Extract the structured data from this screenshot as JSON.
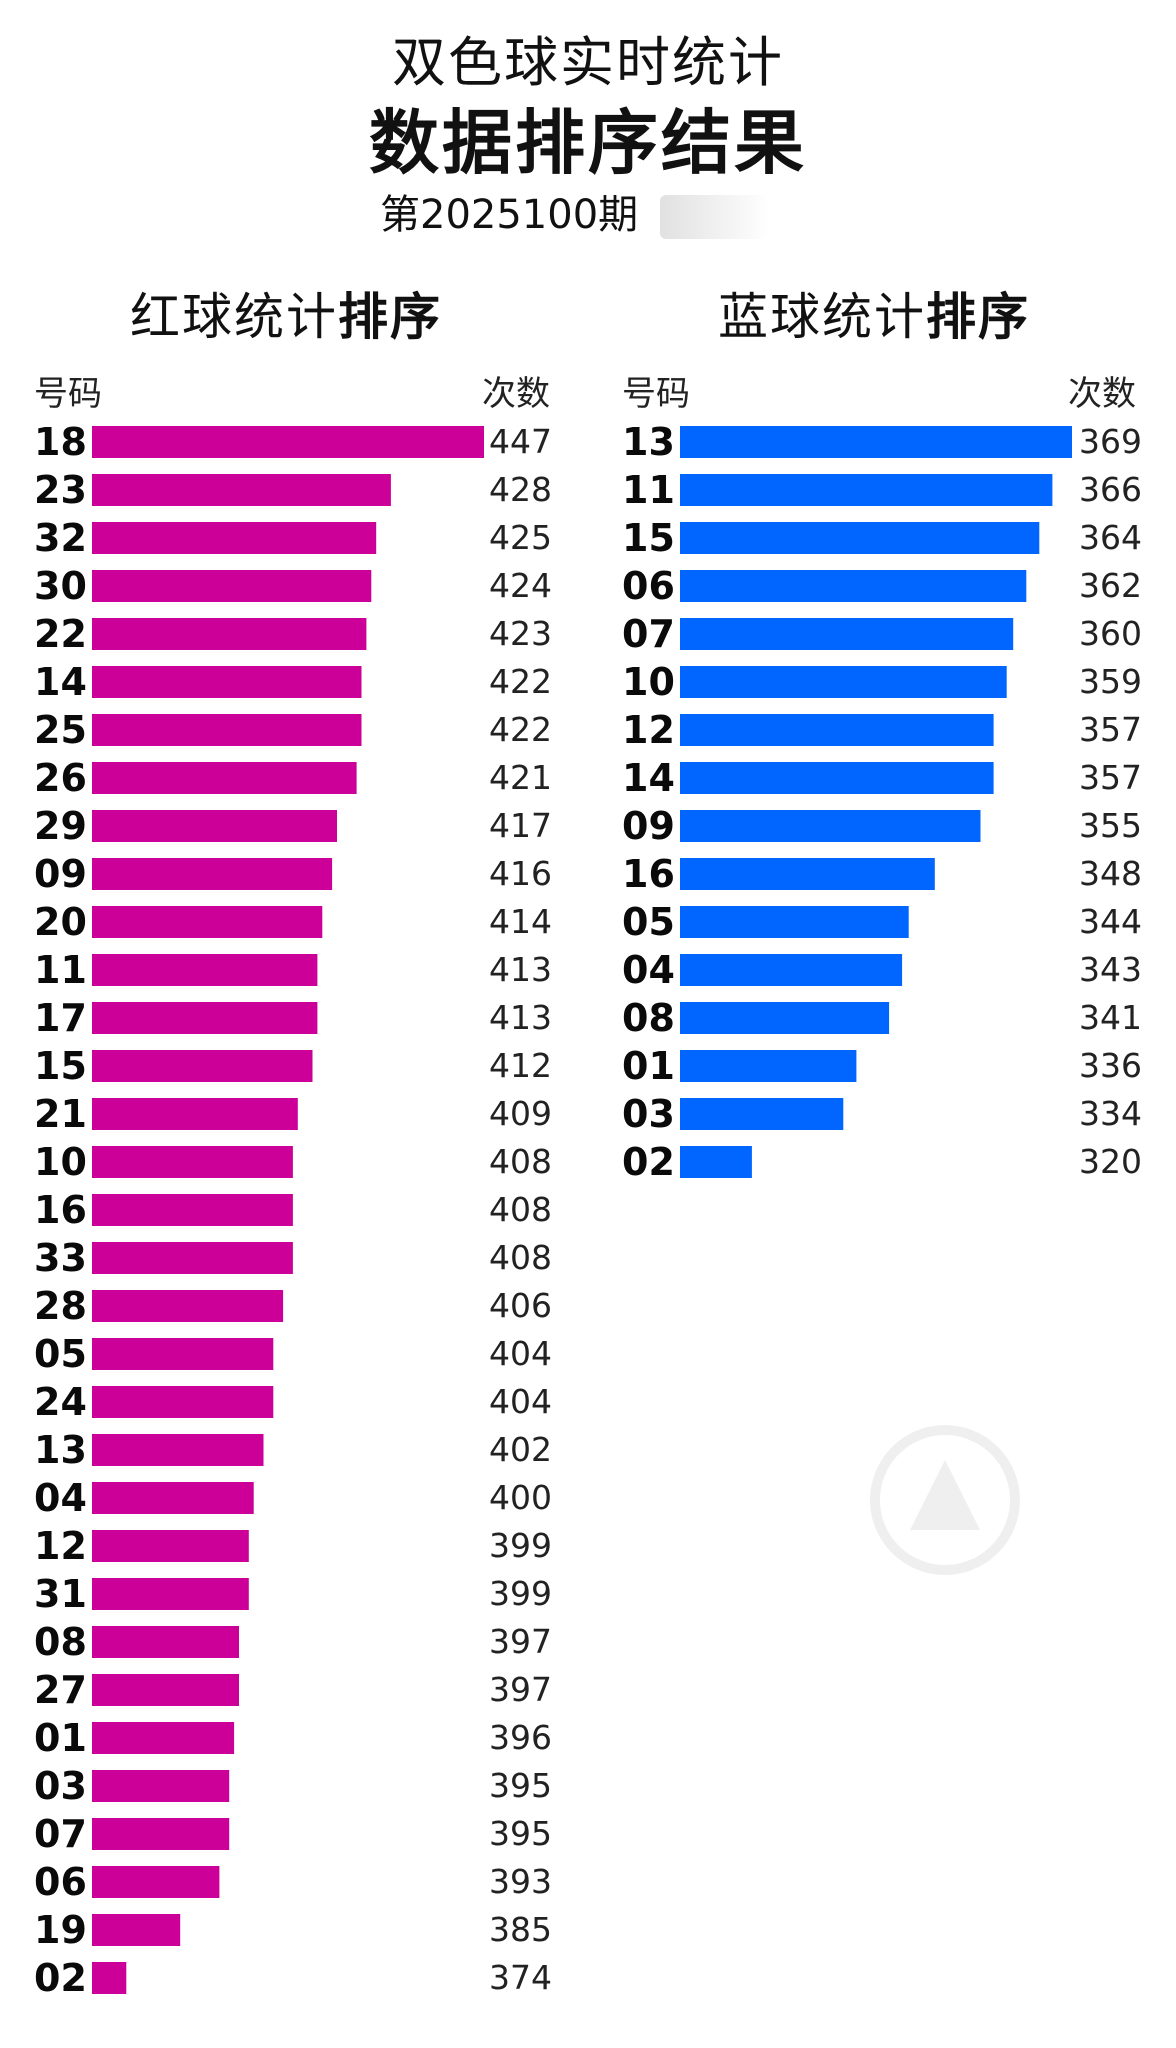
{
  "header": {
    "line1": "双色球实时统计",
    "line2": "数据排序结果",
    "issue": "第2025100期"
  },
  "chart_data": [
    {
      "type": "bar",
      "orientation": "horizontal",
      "title_regular": "红球统计",
      "title_bold": "排序",
      "xlabel": "次数",
      "ylabel": "号码",
      "color": "#CC0099",
      "categories": [
        "18",
        "23",
        "32",
        "30",
        "22",
        "14",
        "25",
        "26",
        "29",
        "09",
        "20",
        "11",
        "17",
        "15",
        "21",
        "10",
        "16",
        "33",
        "28",
        "05",
        "24",
        "13",
        "04",
        "12",
        "31",
        "08",
        "27",
        "01",
        "03",
        "07",
        "06",
        "19",
        "02"
      ],
      "values": [
        447,
        428,
        425,
        424,
        423,
        422,
        422,
        421,
        417,
        416,
        414,
        413,
        413,
        412,
        409,
        408,
        408,
        408,
        406,
        404,
        404,
        402,
        400,
        399,
        399,
        397,
        397,
        396,
        395,
        395,
        393,
        385,
        374
      ],
      "labels": [
        "447",
        "428",
        "425",
        "424",
        "423",
        "422",
        "422",
        "421",
        "417",
        "416",
        "414",
        "413",
        "413",
        "412",
        "409",
        "408",
        "408",
        "408",
        "406",
        "404",
        "404",
        "402",
        "400",
        "399",
        "399",
        "397",
        "397",
        "396",
        "395",
        "395",
        "393",
        "385",
        "374"
      ],
      "xlim": [
        367,
        447
      ]
    },
    {
      "type": "bar",
      "orientation": "horizontal",
      "title_regular": "蓝球统计",
      "title_bold": "排序",
      "xlabel": "次数",
      "ylabel": "号码",
      "color": "#0066FF",
      "categories": [
        "13",
        "11",
        "15",
        "06",
        "07",
        "10",
        "12",
        "14",
        "09",
        "16",
        "05",
        "04",
        "08",
        "01",
        "03",
        "02"
      ],
      "values": [
        369,
        366,
        364,
        362,
        360,
        359,
        357,
        357,
        355,
        348,
        344,
        343,
        341,
        336,
        334,
        320
      ],
      "labels": [
        "369",
        "366",
        "364",
        "362",
        "360",
        "359",
        "357",
        "357",
        "355",
        "348",
        "344",
        "343",
        "341",
        "336",
        "334",
        "320"
      ],
      "xlim": [
        309,
        369
      ]
    }
  ]
}
